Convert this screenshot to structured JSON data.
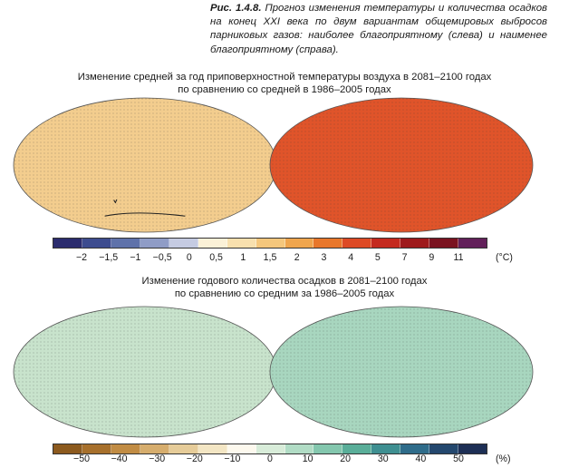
{
  "caption": {
    "label": "Рис. 1.4.8.",
    "text": "Прогноз изменения температуры и количества осадков на конец XXI века по двум вариантам общемировых выбросов парниковых газов: наиболее благоприятному (слева) и наименее благоприятному (справа)."
  },
  "temperature": {
    "title_line1": "Изменение средней за год приповерхностной температуры воздуха в 2081–2100 годах",
    "title_line2": "по сравнению со средней в 1986–2005 годах",
    "unit": "(°C)",
    "colors": [
      "#2b2c6e",
      "#3d4c8f",
      "#5f72aa",
      "#8f9cc6",
      "#c5cbe2",
      "#fbf1d7",
      "#f8e0ae",
      "#f5c77c",
      "#efa54d",
      "#e8772b",
      "#dd4a25",
      "#c42a1f",
      "#9e1a1c",
      "#7a1320",
      "#62205a"
    ],
    "tick_labels": [
      "−2",
      "−1,5",
      "−1",
      "−0,5",
      "0",
      "0,5",
      "1",
      "1,5",
      "2",
      "3",
      "4",
      "5",
      "7",
      "9",
      "11"
    ],
    "map_left_fill": "#f3cd8e",
    "map_right_fill": "#e0542a"
  },
  "precipitation": {
    "title_line1": "Изменение годового количества осадков в 2081–2100 годах",
    "title_line2": "по сравнению со средним за 1986–2005 годах",
    "unit": "(%)",
    "colors": [
      "#8c5a1e",
      "#a7702c",
      "#c18c44",
      "#d6ad6d",
      "#e6cc99",
      "#f3e6c4",
      "#fdf9ee",
      "#d8ecd9",
      "#b1dcc5",
      "#84c7ae",
      "#5aae99",
      "#3f8f91",
      "#2f6c8a",
      "#24486e",
      "#1d2f55"
    ],
    "tick_labels": [
      "−50",
      "−40",
      "−30",
      "−20",
      "−10",
      "0",
      "10",
      "20",
      "30",
      "40",
      "50"
    ],
    "map_left_fill": "#c8e3cc",
    "map_right_fill": "#a8d6bf"
  },
  "icons": {
    "map_tl": "world-map-icon",
    "map_tr": "world-map-icon",
    "map_bl": "world-map-icon",
    "map_br": "world-map-icon"
  }
}
